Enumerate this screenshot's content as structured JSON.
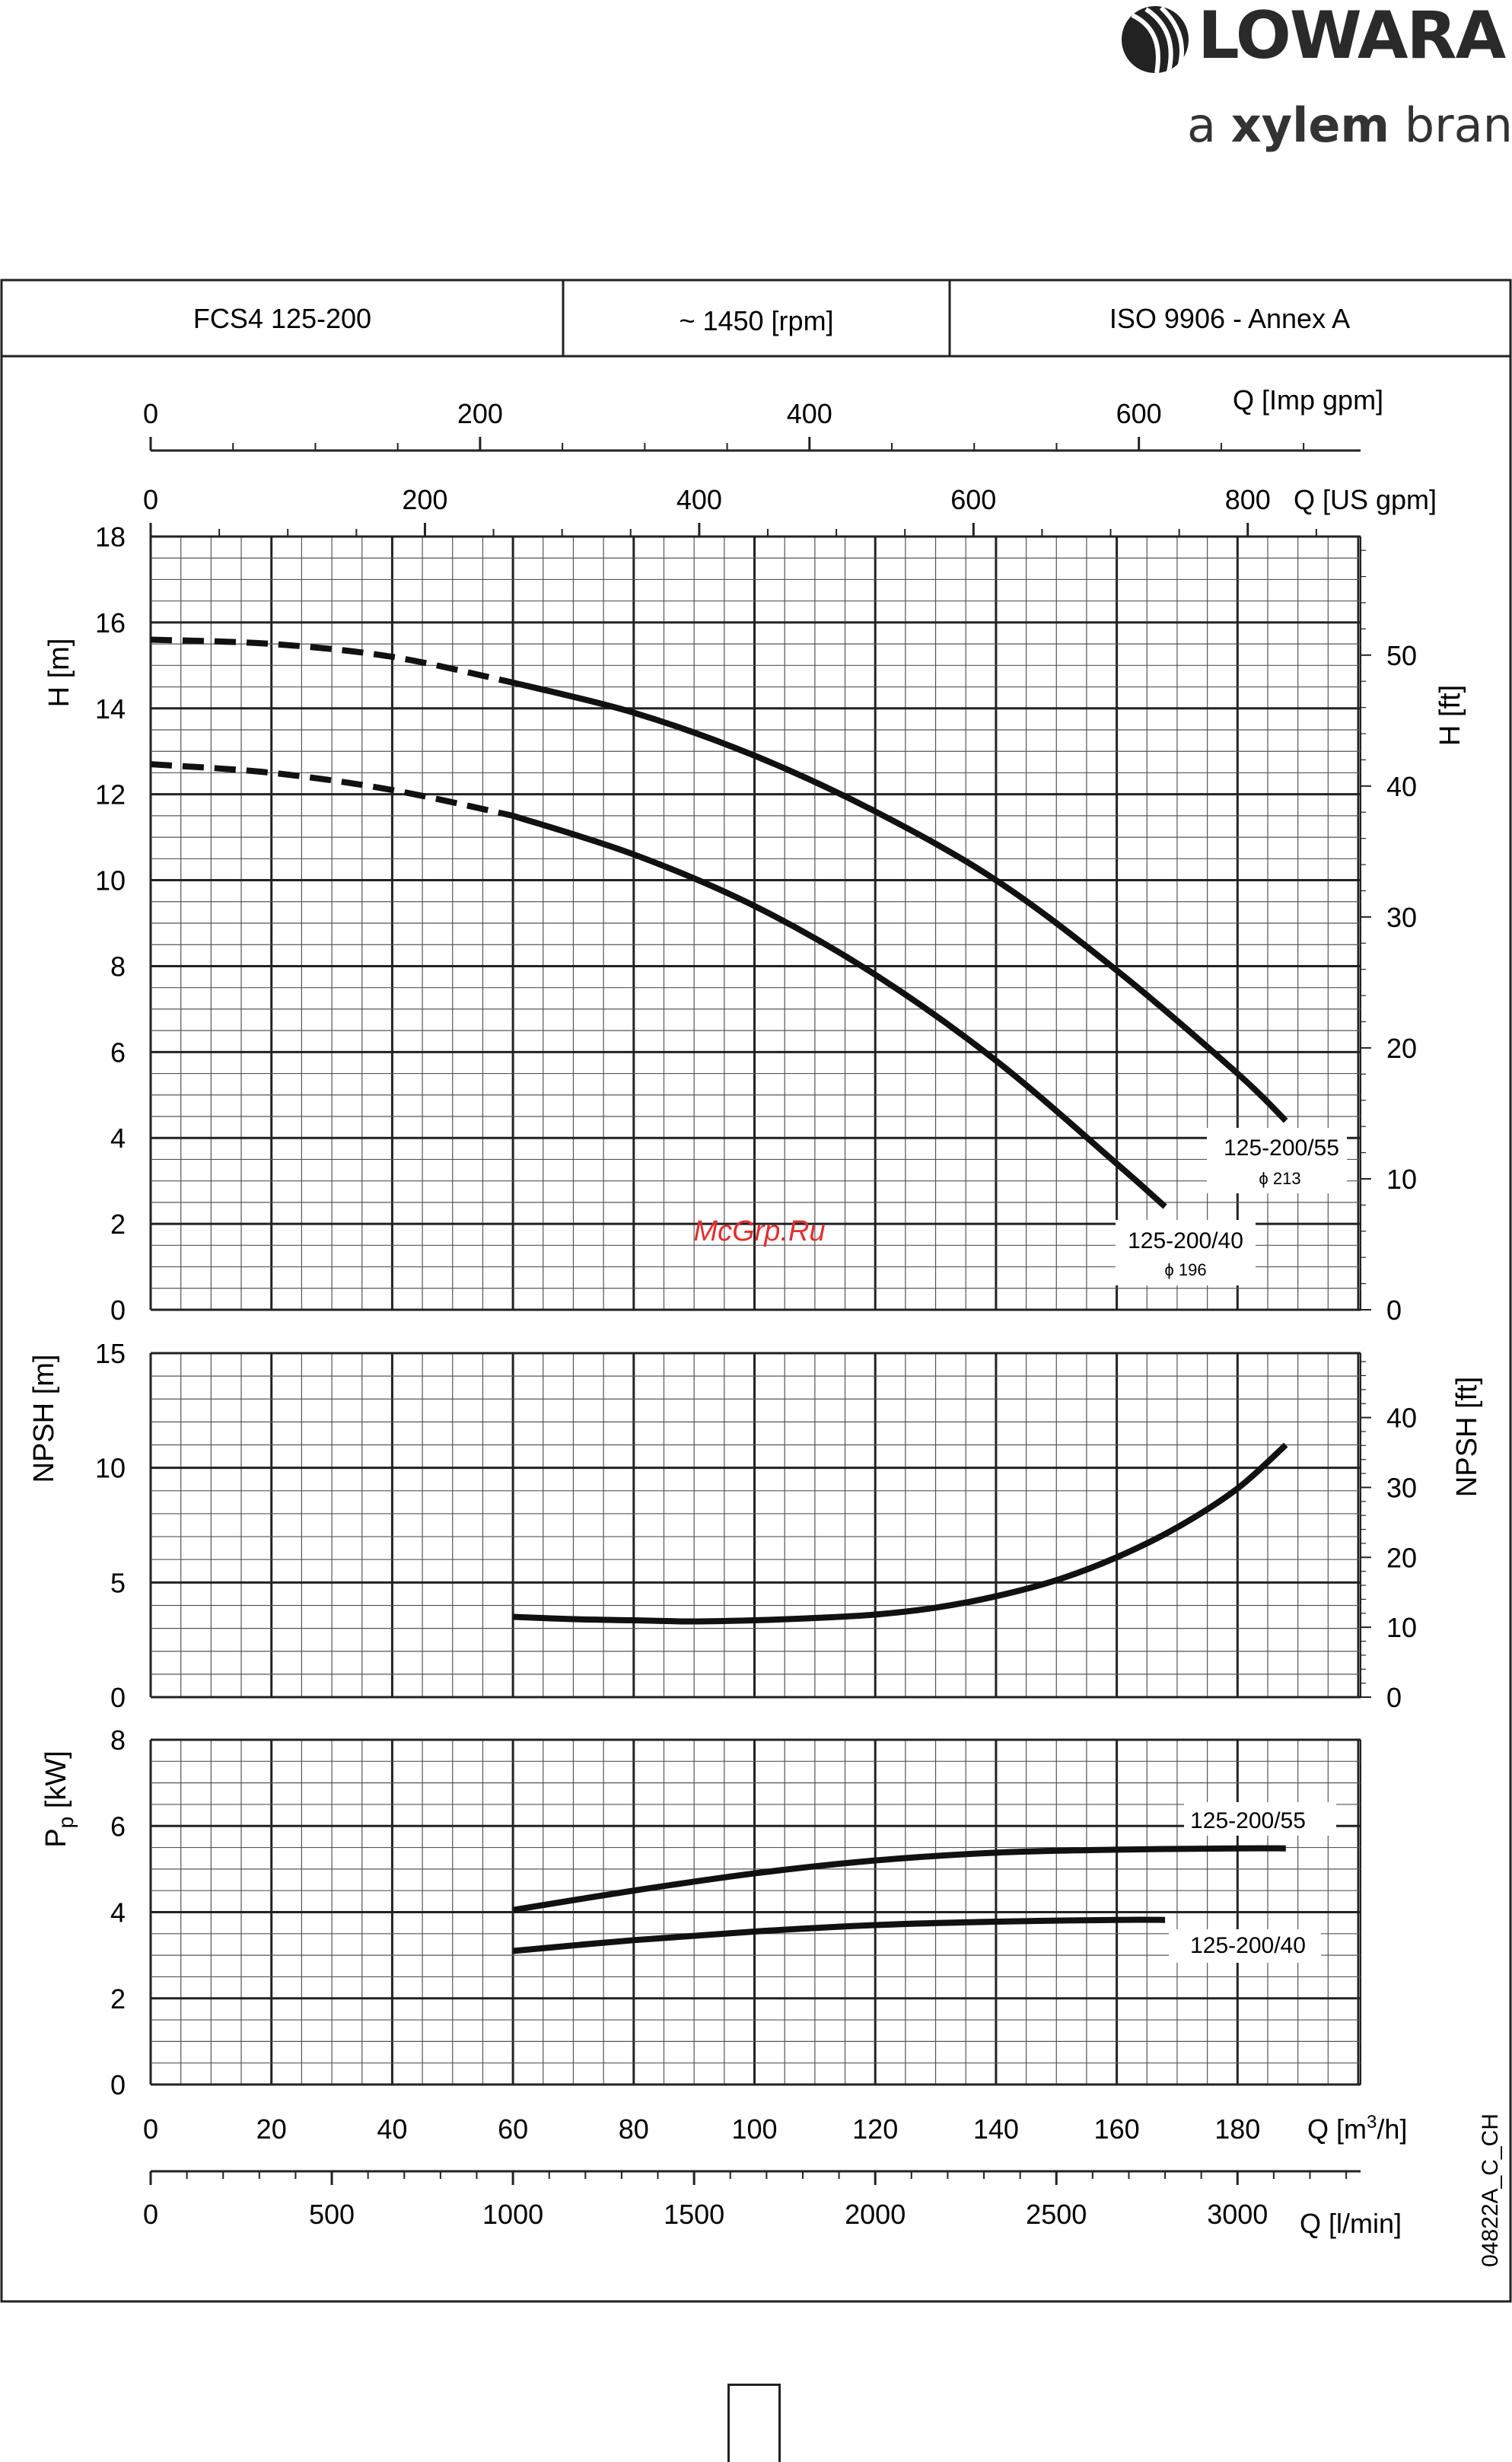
{
  "brand": {
    "name": "LOWARA",
    "tagline_prefix": "a ",
    "tagline_brand": "xylem",
    "tagline_suffix": " brand"
  },
  "header": {
    "model": "FCS4 125-200",
    "speed": "~ 1450 [rpm]",
    "standard": "ISO 9906 - Annex A"
  },
  "watermark": "McGrp.Ru",
  "doc_code": "04822A_C_CH",
  "colors": {
    "curve": "#111111",
    "grid_major": "#222222",
    "grid_minor": "#555555",
    "watermark": "#e03030"
  },
  "chart_data": [
    {
      "id": "head",
      "type": "line",
      "xlabel": "Q [m³/h]",
      "ylabel": "H [m]",
      "ylabel_right": "H [ft]",
      "xlim": [
        0,
        200
      ],
      "ylim": [
        0,
        18
      ],
      "y_ticks": [
        0,
        2,
        4,
        6,
        8,
        10,
        12,
        14,
        16,
        18
      ],
      "y_right_ticks": [
        0,
        10,
        20,
        30,
        40,
        50
      ],
      "grid": true,
      "dashed_until_x": 60,
      "series": [
        {
          "name": "125-200/55",
          "sub": "ϕ 213",
          "x": [
            0,
            20,
            40,
            60,
            80,
            100,
            120,
            140,
            160,
            180,
            188
          ],
          "y": [
            15.6,
            15.5,
            15.2,
            14.6,
            13.9,
            12.9,
            11.6,
            10.0,
            7.9,
            5.5,
            4.4
          ]
        },
        {
          "name": "125-200/40",
          "sub": "ϕ 196",
          "x": [
            0,
            20,
            40,
            60,
            80,
            100,
            120,
            140,
            160,
            168
          ],
          "y": [
            12.7,
            12.5,
            12.1,
            11.5,
            10.6,
            9.4,
            7.8,
            5.8,
            3.4,
            2.4
          ]
        }
      ]
    },
    {
      "id": "npsh",
      "type": "line",
      "ylabel": "NPSH [m]",
      "ylabel_right": "NPSH [ft]",
      "xlim": [
        0,
        200
      ],
      "ylim": [
        0,
        15
      ],
      "y_ticks": [
        0,
        5,
        10,
        15
      ],
      "y_right_ticks": [
        0,
        10,
        20,
        30,
        40
      ],
      "grid": true,
      "series": [
        {
          "x": [
            60,
            70,
            80,
            90,
            100,
            110,
            120,
            130,
            140,
            150,
            160,
            170,
            180,
            188
          ],
          "y": [
            3.5,
            3.4,
            3.35,
            3.3,
            3.35,
            3.45,
            3.6,
            3.9,
            4.4,
            5.1,
            6.1,
            7.4,
            9.1,
            11.0
          ]
        }
      ]
    },
    {
      "id": "power",
      "type": "line",
      "ylabel": "Pp [kW]",
      "xlabel": "Q [m³/h]",
      "xlim": [
        0,
        200
      ],
      "ylim": [
        0,
        8
      ],
      "y_ticks": [
        0,
        2,
        4,
        6,
        8
      ],
      "x_ticks": [
        0,
        20,
        40,
        60,
        80,
        100,
        120,
        140,
        160,
        180
      ],
      "grid": true,
      "series": [
        {
          "name": "125-200/55",
          "x": [
            60,
            80,
            100,
            120,
            140,
            160,
            180,
            188
          ],
          "y": [
            4.05,
            4.5,
            4.9,
            5.2,
            5.38,
            5.45,
            5.48,
            5.48
          ]
        },
        {
          "name": "125-200/40",
          "x": [
            60,
            80,
            100,
            120,
            140,
            160,
            168
          ],
          "y": [
            3.1,
            3.35,
            3.55,
            3.7,
            3.78,
            3.82,
            3.82
          ]
        }
      ]
    }
  ],
  "axes": {
    "imp_gpm": {
      "label": "Q [Imp gpm]",
      "ticks": [
        0,
        200,
        400,
        600
      ]
    },
    "us_gpm": {
      "label": "Q [US gpm]",
      "ticks": [
        0,
        200,
        400,
        600,
        800
      ]
    },
    "m3h": {
      "label_prefix": "Q [m",
      "label_sup": "3",
      "label_suffix": "/h]",
      "ticks": [
        0,
        20,
        40,
        60,
        80,
        100,
        120,
        140,
        160,
        180
      ]
    },
    "lmin": {
      "label": "Q [l/min]",
      "ticks": [
        0,
        500,
        1000,
        1500,
        2000,
        2500,
        3000
      ]
    },
    "power_ylabel_main": "P",
    "power_ylabel_sub": "p",
    "power_ylabel_unit": " [kW]"
  }
}
